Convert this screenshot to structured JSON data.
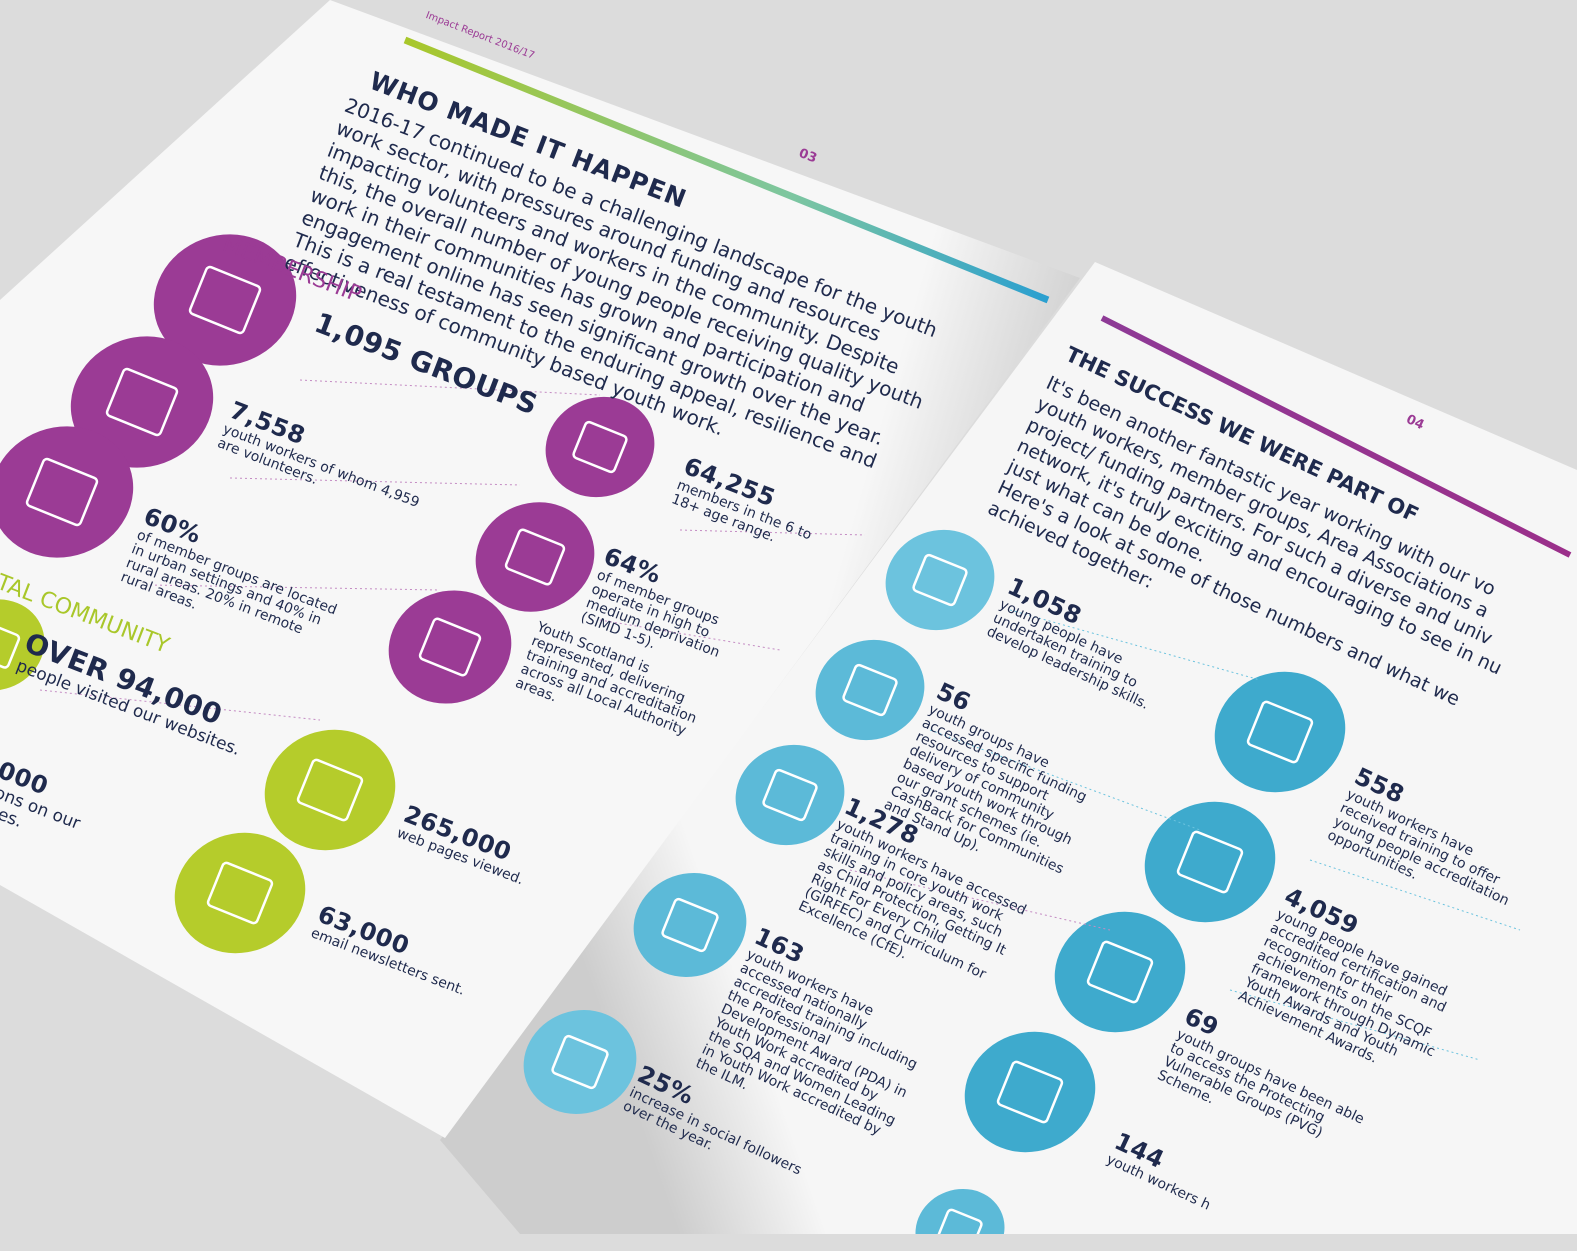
{
  "left_page": {
    "header": "Impact Report 2016/17",
    "page_number": "03",
    "title": "WHO MADE IT HAPPEN",
    "intro_lines": [
      "2016-17 continued to be a challenging landscape for the youth",
      "work sector, with pressures around funding and resources",
      "impacting volunteers and workers in the community. Despite",
      "this, the overall number of young people receiving quality youth",
      "work in their communities has grown and participation and",
      "engagement online has seen significant growth over the year.",
      "This is a real testament to the enduring appeal, resilience and",
      "effectiveness of community based youth work."
    ],
    "membership_heading": "MEMBERSHIP",
    "membership_stats": [
      {
        "figure": "1,095 GROUPS"
      },
      {
        "figure": "7,558",
        "text": "youth workers of whom 4,959 are volunteers."
      },
      {
        "figure": "64,255",
        "text": "members in the 6 to 18+ age range."
      },
      {
        "figure": "60%",
        "text": "of member groups are located in urban settings and 40% in rural areas. 20% in remote rural areas."
      },
      {
        "figure": "64%",
        "text": "of member groups operate in high to medium deprivation (SIMD 1-5)."
      },
      {
        "text": "Youth Scotland is represented, delivering training and accreditation across all Local Authority areas."
      }
    ],
    "digital_heading": "TAL COMMUNITY",
    "digital_stats": [
      {
        "figure": "OVER 94,000",
        "text": "people visited our websites."
      },
      {
        "figure": "000",
        "text": "ions on our files."
      },
      {
        "figure": "265,000",
        "text": "web pages viewed."
      },
      {
        "figure": "63,000",
        "text": "email newsletters sent."
      }
    ]
  },
  "right_page": {
    "page_number": "04",
    "title": "THE SUCCESS WE WERE PART OF",
    "intro_lines": [
      "It's been another fantastic year working with our vo",
      "youth workers, member groups, Area Associations a",
      "project/ funding partners. For such a diverse and univ",
      "network, it's truly exciting and encouraging to see in nu",
      "just what can be done.",
      "Here's a look at some of those numbers and what we",
      "achieved together:"
    ],
    "stats": [
      {
        "figure": "1,058",
        "text": "young people have undertaken training to develop leadership skills."
      },
      {
        "figure": "56",
        "text": "youth groups have accessed specific funding resources to support delivery of community based youth work through our grant schemes (ie. CashBack for Communities and Stand Up)."
      },
      {
        "figure": "1,278",
        "text": "youth workers have accessed training in core youth work skills and policy areas, such as Child Protection, Getting It Right For Every Child (GIRFEC) and Curriculum for Excellence (CfE)."
      },
      {
        "figure": "163",
        "text": "youth workers have accessed nationally accredited training including the Professional Development Award (PDA) in Youth Work accredited by the SQA and Women Leading in Youth Work accredited by the ILM."
      },
      {
        "figure": "25%",
        "text": "increase in social followers over the year."
      },
      {
        "figure": "558",
        "text": "youth workers have received training to offer young people accreditation opportunities."
      },
      {
        "figure": "4,059",
        "text": "young people have gained accredited certification and recognition for their achievements on the SCQF framework through Dynamic Youth Awards and Youth Achievement Awards."
      },
      {
        "figure": "69",
        "text": "youth groups have been able to access the Protecting Vulnerable Groups (PVG) Scheme."
      },
      {
        "figure": "144",
        "text": "youth workers h"
      }
    ]
  }
}
